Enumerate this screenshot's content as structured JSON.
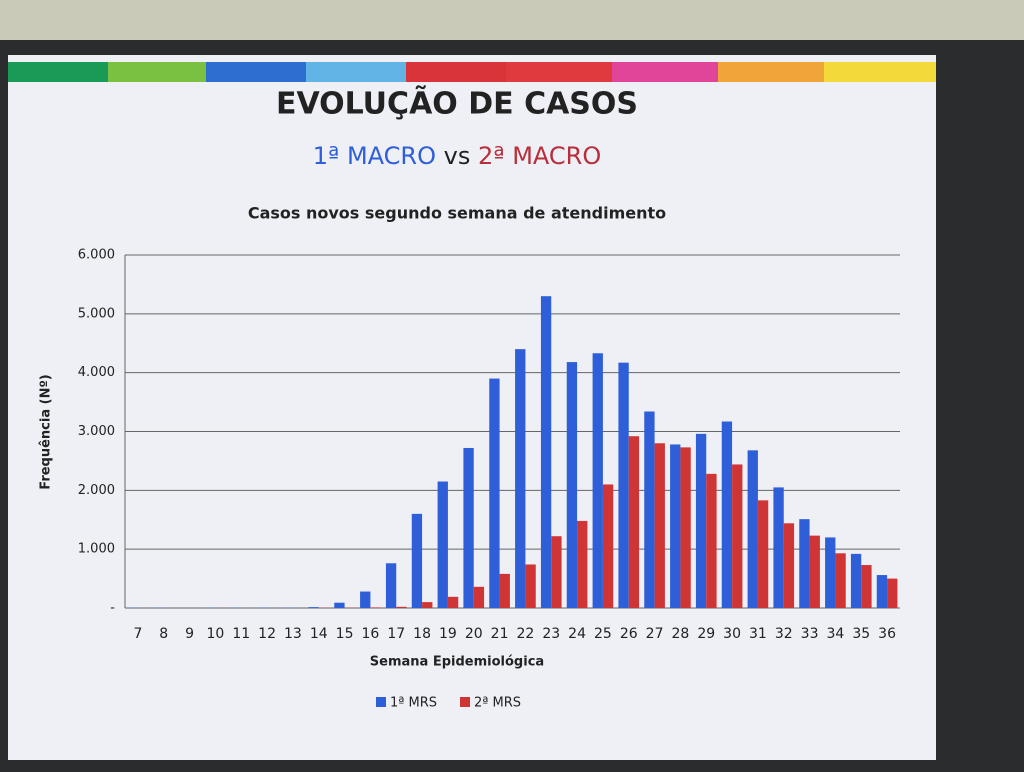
{
  "slide": {
    "heading": "EVOLUÇÃO DE CASOS",
    "subheading": [
      "1ª MACRO",
      "vs",
      "2ª MACRO"
    ]
  },
  "chart_data": {
    "type": "bar",
    "title": "Casos novos segundo semana de atendimento",
    "x_label": "Semana Epidemiológica",
    "y_label": "Frequência (Nº)",
    "categories": [
      "7",
      "8",
      "9",
      "10",
      "11",
      "12",
      "13",
      "14",
      "15",
      "16",
      "17",
      "18",
      "19",
      "20",
      "21",
      "22",
      "23",
      "24",
      "25",
      "26",
      "27",
      "28",
      "29",
      "30",
      "31",
      "32",
      "33",
      "34",
      "35",
      "36"
    ],
    "series": [
      {
        "name": "1ª MRS",
        "color": "#2f5fd8",
        "values": [
          5,
          5,
          0,
          5,
          5,
          5,
          5,
          15,
          90,
          280,
          760,
          1600,
          2150,
          2720,
          3900,
          4400,
          5300,
          4180,
          4330,
          4170,
          3340,
          2780,
          2960,
          3170,
          2680,
          2050,
          1510,
          1200,
          920,
          560
        ]
      },
      {
        "name": "2ª MRS",
        "color": "#d03535",
        "values": [
          0,
          0,
          0,
          0,
          0,
          0,
          0,
          5,
          5,
          10,
          20,
          100,
          190,
          360,
          580,
          740,
          1220,
          1480,
          2100,
          2920,
          2800,
          2730,
          2280,
          2440,
          1830,
          1440,
          1230,
          930,
          730,
          500
        ]
      }
    ],
    "ylim": [
      0,
      6000
    ],
    "yticks": [
      {
        "value": 0,
        "label": "-"
      },
      {
        "value": 1000,
        "label": "1.000"
      },
      {
        "value": 2000,
        "label": "2.000"
      },
      {
        "value": 3000,
        "label": "3.000"
      },
      {
        "value": 4000,
        "label": "4.000"
      },
      {
        "value": 5000,
        "label": "5.000"
      },
      {
        "value": 6000,
        "label": "6.000"
      }
    ],
    "grid": true,
    "legend": "bottom"
  }
}
